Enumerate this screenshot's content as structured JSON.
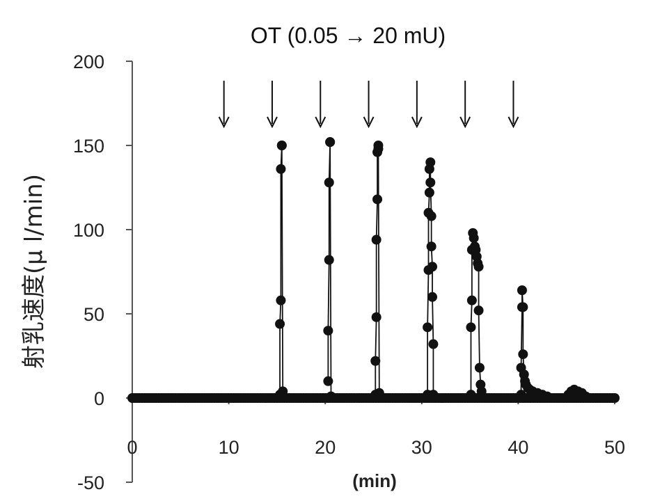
{
  "chart_data": {
    "type": "scatter",
    "title": "OT (0.05 → 20 mU)",
    "xlabel": "(min)",
    "ylabel": "射乳速度(μ l/min)",
    "xlim": [
      0,
      50
    ],
    "ylim": [
      -50,
      200
    ],
    "xticks": [
      "0",
      "10",
      "20",
      "30",
      "40",
      "50"
    ],
    "yticks": [
      "-50",
      "0",
      "50",
      "100",
      "150",
      "200"
    ],
    "grid": false,
    "arrow_times": [
      9.5,
      14.5,
      19.5,
      24.5,
      29.5,
      34.5,
      39.5
    ],
    "baseline": {
      "x_start": 0,
      "x_end": 50,
      "value": 0
    },
    "peaks": [
      {
        "x": [
          15.3,
          15.3,
          15.4,
          15.4,
          15.5,
          15.5,
          15.6,
          15.6
        ],
        "y": [
          2,
          44,
          58,
          136,
          150,
          150,
          4,
          1
        ]
      },
      {
        "x": [
          20.3,
          20.3,
          20.4,
          20.4,
          20.5,
          20.5,
          20.6
        ],
        "y": [
          10,
          40,
          82,
          128,
          152,
          152,
          1
        ]
      },
      {
        "x": [
          25.2,
          25.2,
          25.3,
          25.3,
          25.4,
          25.4,
          25.5,
          25.5,
          25.6
        ],
        "y": [
          2,
          22,
          48,
          94,
          118,
          146,
          150,
          148,
          3
        ]
      },
      {
        "x": [
          30.6,
          30.6,
          30.7,
          30.7,
          30.8,
          30.8,
          30.9,
          30.9,
          31.0,
          31.0,
          31.1,
          31.1,
          31.2,
          31.2
        ],
        "y": [
          2,
          42,
          76,
          110,
          122,
          136,
          140,
          128,
          108,
          90,
          78,
          60,
          32,
          2
        ]
      },
      {
        "x": [
          35.1,
          35.1,
          35.2,
          35.2,
          35.3,
          35.4,
          35.5,
          35.6,
          35.7,
          35.8,
          35.9,
          35.9,
          36.0,
          36.1,
          36.2
        ],
        "y": [
          2,
          42,
          58,
          88,
          98,
          95,
          90,
          88,
          84,
          80,
          78,
          52,
          18,
          8,
          4
        ]
      },
      {
        "x": [
          40.3,
          40.3,
          40.4,
          40.4,
          40.5,
          40.5,
          40.6,
          40.7,
          40.8,
          41.0,
          41.2,
          41.5,
          42.0,
          42.5,
          43.0
        ],
        "y": [
          2,
          18,
          54,
          64,
          54,
          26,
          14,
          10,
          8,
          6,
          5,
          4,
          3,
          2,
          1
        ]
      },
      {
        "x": [
          45.2,
          45.5,
          45.8,
          46.2,
          46.6,
          47.0
        ],
        "y": [
          2,
          4,
          5,
          4,
          3,
          1
        ]
      }
    ]
  }
}
